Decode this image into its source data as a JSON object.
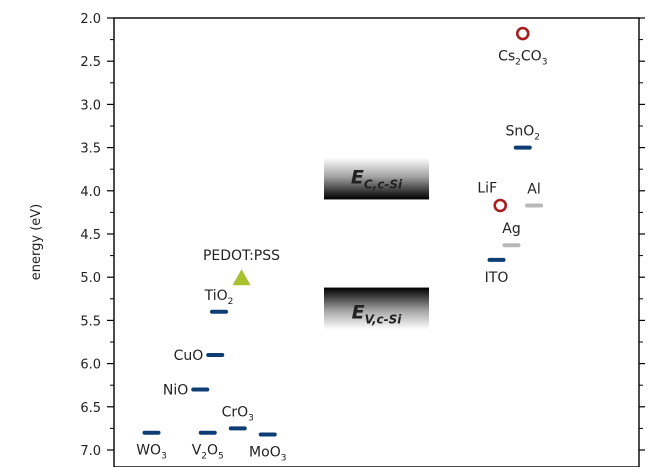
{
  "chart_data": {
    "type": "scatter",
    "ylabel": "energy (eV)",
    "ylim": [
      2.0,
      7.15
    ],
    "y_inverted": true,
    "yticks": [
      "2.0",
      "2.5",
      "3.0",
      "3.5",
      "4.0",
      "4.5",
      "5.0",
      "5.5",
      "6.0",
      "6.5",
      "7.0"
    ],
    "grid": false,
    "xlim": [
      0,
      14
    ],
    "colors": {
      "oxide": "#0d3d73",
      "metal": "#b8b8b8",
      "polymer": "#a7c22e",
      "low_wf": "#a81d1d"
    },
    "points": [
      {
        "label": "WO",
        "sub": "3",
        "x": 1.0,
        "y": 6.8,
        "marker": "dash",
        "color_key": "oxide",
        "label_pos": "below"
      },
      {
        "label": "V",
        "sub": "2",
        "label2": "O",
        "sub2": "5",
        "x": 2.5,
        "y": 6.8,
        "marker": "dash",
        "color_key": "oxide",
        "label_pos": "below"
      },
      {
        "label": "CrO",
        "sub": "3",
        "x": 3.3,
        "y": 6.75,
        "marker": "dash",
        "color_key": "oxide",
        "label_pos": "above"
      },
      {
        "label": "MoO",
        "sub": "3",
        "x": 4.1,
        "y": 6.82,
        "marker": "dash",
        "color_key": "oxide",
        "label_pos": "below"
      },
      {
        "label": "NiO",
        "x": 2.3,
        "y": 6.3,
        "marker": "dash",
        "color_key": "oxide",
        "label_pos": "left"
      },
      {
        "label": "CuO",
        "x": 2.7,
        "y": 5.9,
        "marker": "dash",
        "color_key": "oxide",
        "label_pos": "left"
      },
      {
        "label": "TiO",
        "sub": "2",
        "x": 2.8,
        "y": 5.4,
        "marker": "dash",
        "color_key": "oxide",
        "label_pos": "above"
      },
      {
        "label": "PEDOT:PSS",
        "x": 3.4,
        "y": 5.0,
        "marker": "triangle",
        "color_key": "polymer",
        "label_pos": "above"
      },
      {
        "label": "ITO",
        "x": 10.2,
        "y": 4.8,
        "marker": "dash",
        "color_key": "oxide",
        "label_pos": "below"
      },
      {
        "label": "Ag",
        "x": 10.6,
        "y": 4.63,
        "marker": "dash",
        "color_key": "metal",
        "label_pos": "above"
      },
      {
        "label": "LiF",
        "x": 10.3,
        "y": 4.17,
        "marker": "circle",
        "color_key": "low_wf",
        "label_pos": "above-left"
      },
      {
        "label": "Al",
        "x": 11.2,
        "y": 4.17,
        "marker": "dash",
        "color_key": "metal",
        "label_pos": "above"
      },
      {
        "label": "SnO",
        "sub": "2",
        "x": 10.9,
        "y": 3.5,
        "marker": "dash",
        "color_key": "oxide",
        "label_pos": "above"
      },
      {
        "label": "Cs",
        "sub": "2",
        "label2": "CO",
        "sub2": "3",
        "x": 10.9,
        "y": 2.18,
        "marker": "circle",
        "color_key": "low_wf",
        "label_pos": "below"
      }
    ],
    "bands": [
      {
        "label": "E",
        "sub": "C,c-Si",
        "y_edge": 4.1,
        "side": "above",
        "x_from": 5.6,
        "x_to": 8.4
      },
      {
        "label": "E",
        "sub": "V,c-Si",
        "y_edge": 5.12,
        "side": "below",
        "x_from": 5.6,
        "x_to": 8.4
      }
    ]
  }
}
